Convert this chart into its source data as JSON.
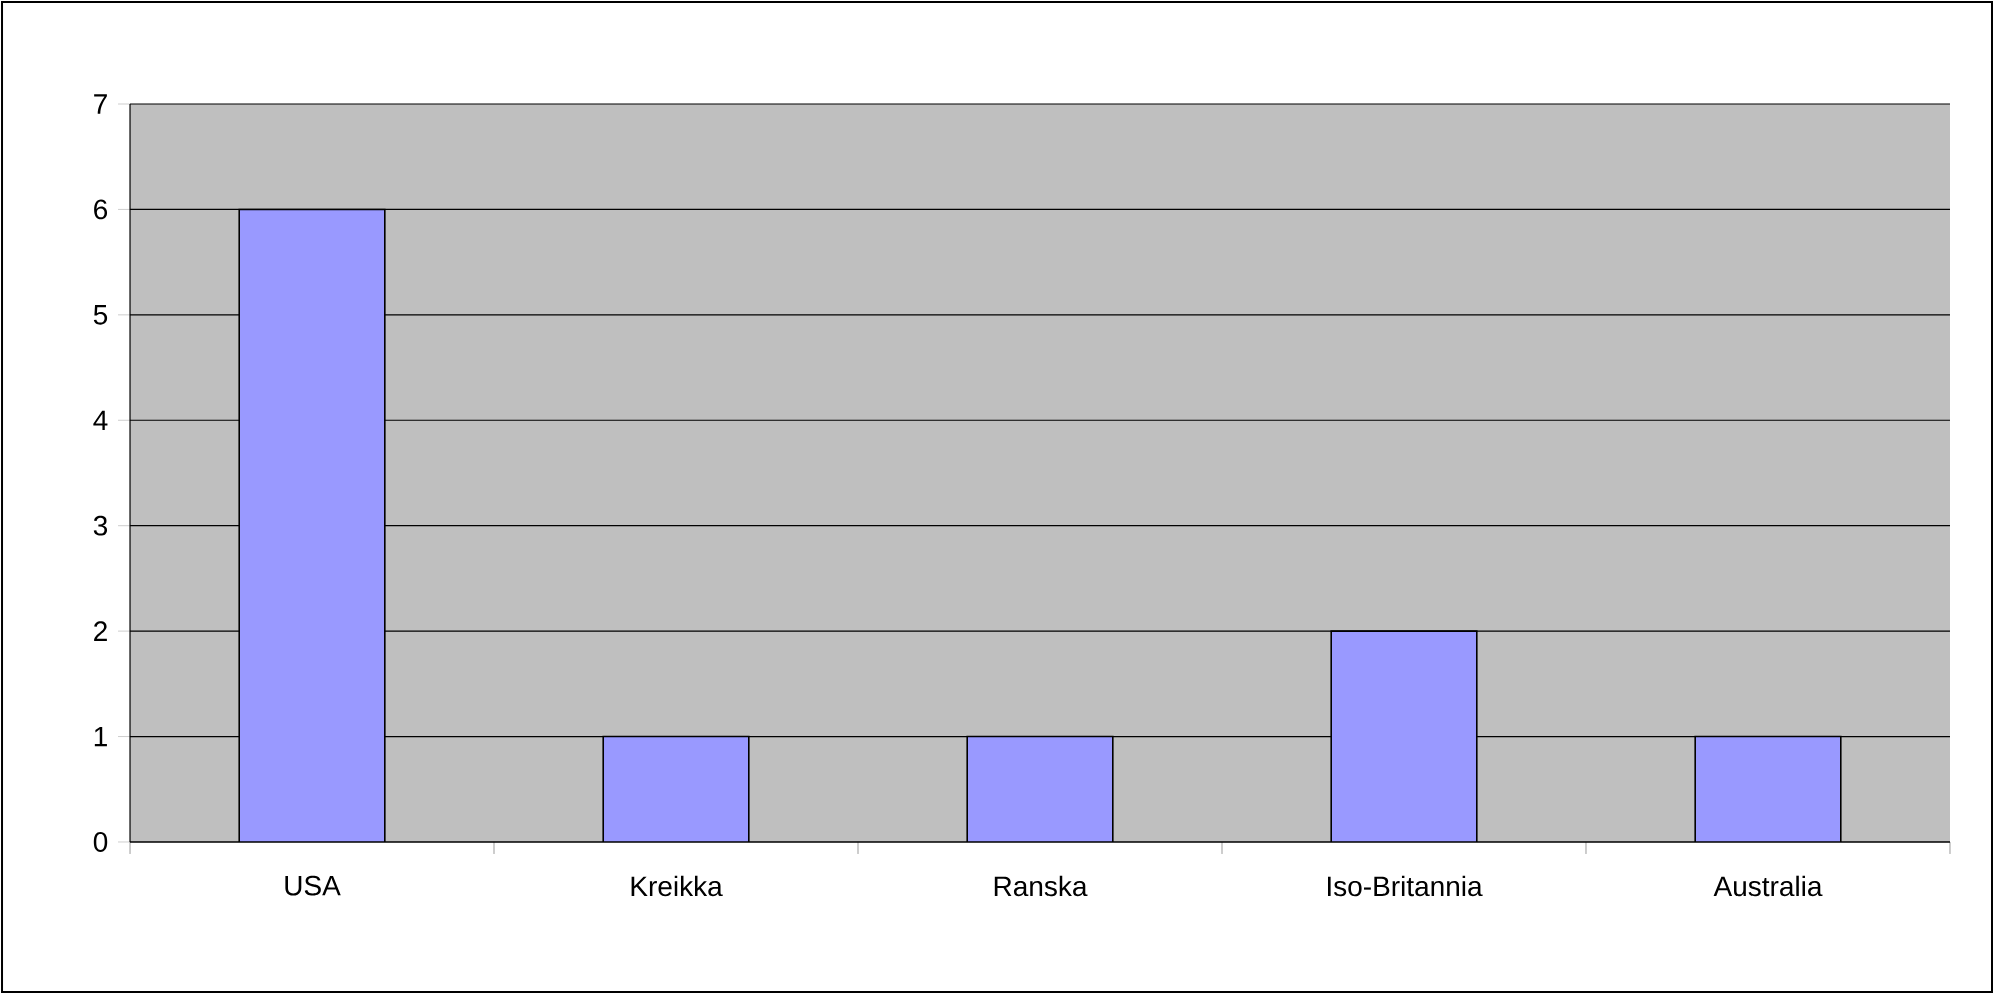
{
  "chart_data": {
    "type": "bar",
    "categories": [
      "USA",
      "Kreikka",
      "Ranska",
      "Iso-Britannia",
      "Australia"
    ],
    "values": [
      6,
      1,
      1,
      2,
      1
    ],
    "color": "#9999ff",
    "ylim": [
      0,
      7
    ],
    "yticks": [
      0,
      1,
      2,
      3,
      4,
      5,
      6,
      7
    ],
    "grid": "y"
  }
}
